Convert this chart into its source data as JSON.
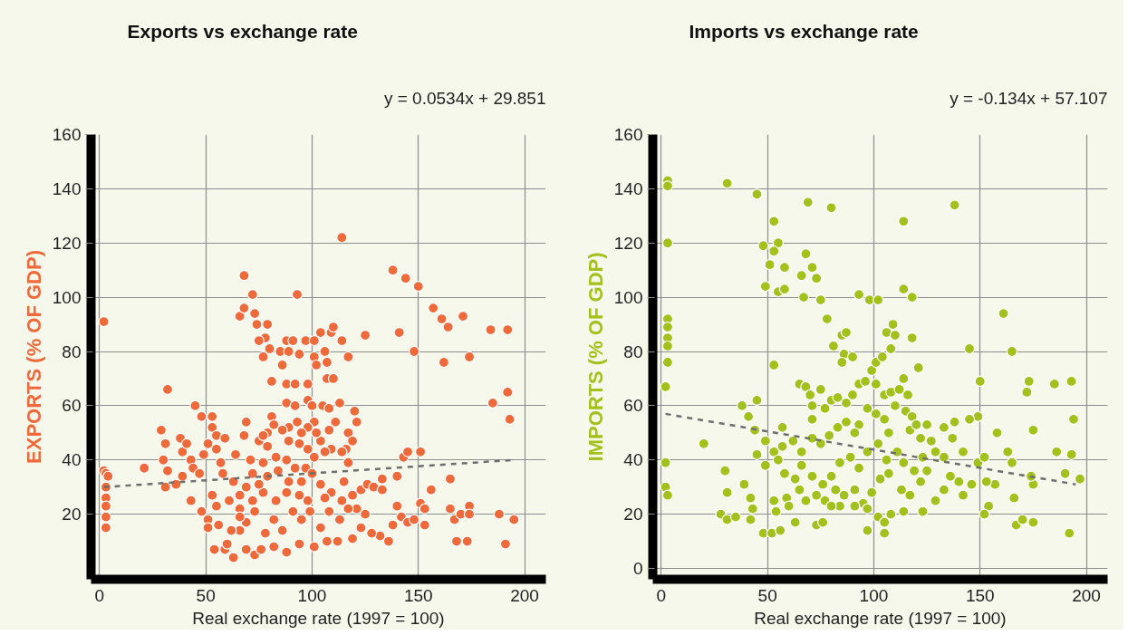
{
  "chart_data": [
    {
      "type": "scatter",
      "title": "Exports vs exchange rate",
      "xlabel": "Real exchange rate (1997 = 100)",
      "ylabel": "EXPORTS (% OF GDP)",
      "annotations": [
        "y = 0.0534x + 29.851"
      ],
      "xlim": [
        -4,
        210
      ],
      "ylim": [
        -4,
        160
      ],
      "xticks": [
        0,
        50,
        100,
        150,
        200
      ],
      "yticks": [
        20,
        40,
        60,
        80,
        100,
        120,
        140,
        160
      ],
      "grid": true,
      "series": [
        {
          "color": "#ee6a3a",
          "marker": "circle",
          "x": [
            114,
            68,
            72,
            93,
            138,
            144,
            150,
            157,
            161,
            164,
            171,
            184,
            192,
            141,
            148,
            162,
            174,
            192,
            185,
            193,
            125,
            2,
            66,
            68,
            73,
            74,
            79,
            78,
            75,
            80,
            77,
            85,
            88,
            91,
            89,
            94,
            86,
            97,
            101,
            104,
            109,
            110,
            101,
            106,
            107,
            102,
            107,
            110,
            114,
            117,
            81,
            88,
            92,
            98,
            32,
            21,
            29,
            31,
            30,
            38,
            39,
            41,
            45,
            48,
            53,
            53,
            55,
            59,
            51,
            55,
            49,
            43,
            32,
            44,
            47,
            39,
            36,
            31,
            43,
            57,
            58,
            48,
            51,
            51,
            56,
            54,
            59,
            63,
            60,
            64,
            68,
            69,
            63,
            61,
            55,
            53,
            66,
            69,
            73,
            76,
            82,
            88,
            94,
            101,
            107,
            112,
            119,
            71,
            75,
            81,
            88,
            92,
            98,
            100,
            105,
            108,
            113,
            120,
            121,
            117,
            119,
            116,
            117,
            114,
            109,
            106,
            104,
            102,
            108,
            111,
            101,
            98,
            95,
            93,
            89,
            86,
            82,
            79,
            77,
            89,
            94,
            98,
            101,
            97,
            92,
            88,
            83,
            79,
            77,
            72,
            79,
            84,
            89,
            95,
            100,
            104,
            109,
            115,
            119,
            123,
            126,
            129,
            133,
            133,
            140,
            143,
            145,
            151,
            156,
            165,
            140,
            142,
            145,
            148,
            151,
            153,
            153,
            165,
            167,
            170,
            174,
            174,
            168,
            173,
            188,
            195,
            191,
            136,
            138,
            132,
            128,
            123,
            125,
            121,
            117,
            113,
            108,
            104,
            99,
            95,
            91,
            86,
            82,
            78,
            73,
            69,
            66,
            66,
            62,
            72,
            77,
            83,
            88,
            94,
            98,
            106,
            114,
            75,
            69,
            66,
            2,
            3,
            4,
            3,
            3,
            3,
            3,
            3
          ],
          "values": [
            122,
            108,
            101,
            101,
            110,
            107,
            104,
            96,
            92,
            89,
            93,
            88,
            88,
            87,
            80,
            76,
            78,
            65,
            61,
            55,
            86,
            91,
            93,
            96,
            94,
            90,
            90,
            85,
            84,
            81,
            78,
            80,
            84,
            84,
            80,
            79,
            75,
            84,
            84,
            87,
            87,
            89,
            78,
            80,
            76,
            75,
            70,
            70,
            84,
            78,
            69,
            68,
            68,
            68,
            66,
            37,
            51,
            46,
            40,
            48,
            43,
            46,
            60,
            56,
            56,
            52,
            49,
            48,
            46,
            44,
            42,
            40,
            36,
            37,
            35,
            34,
            31,
            30,
            25,
            39,
            35,
            21,
            18,
            15,
            16,
            7,
            7,
            4,
            9,
            42,
            49,
            54,
            32,
            25,
            23,
            27,
            22,
            7,
            5,
            7,
            8,
            6,
            9,
            8,
            10,
            10,
            11,
            40,
            47,
            56,
            61,
            60,
            62,
            60,
            60,
            59,
            61,
            58,
            54,
            50,
            47,
            44,
            39,
            43,
            44,
            43,
            47,
            50,
            51,
            54,
            54,
            52,
            50,
            54,
            52,
            51,
            53,
            50,
            49,
            47,
            46,
            44,
            41,
            37,
            37,
            40,
            41,
            45,
            39,
            35,
            34,
            36,
            32,
            32,
            35,
            31,
            28,
            32,
            27,
            29,
            31,
            30,
            33,
            29,
            34,
            41,
            43,
            43,
            29,
            33,
            23,
            19,
            17,
            18,
            24,
            22,
            16,
            22,
            18,
            20,
            23,
            20,
            10,
            10,
            20,
            18,
            9,
            10,
            16,
            12,
            13,
            15,
            20,
            22,
            22,
            18,
            21,
            15,
            21,
            18,
            21,
            14,
            18,
            13,
            21,
            17,
            19,
            14,
            14,
            25,
            28,
            25,
            28,
            27,
            25,
            26,
            25,
            31,
            30,
            27,
            36,
            35,
            34,
            30,
            26,
            23,
            19,
            15
          ]
        },
        {
          "type": "line",
          "color": "#6e6e6e",
          "line_style": "dashed",
          "x": [
            2,
            195
          ],
          "values": [
            30,
            40
          ]
        }
      ]
    },
    {
      "type": "scatter",
      "title": "Imports vs exchange rate",
      "xlabel": "Real exchange rate (1997 = 100)",
      "ylabel": "IMPORTS (% OF GDP)",
      "annotations": [
        "y = -0.134x + 57.107"
      ],
      "xlim": [
        -4,
        210
      ],
      "ylim": [
        -4,
        160
      ],
      "xticks": [
        0,
        50,
        100,
        150,
        200
      ],
      "yticks": [
        0,
        20,
        40,
        60,
        80,
        100,
        120,
        140,
        160
      ],
      "grid": true,
      "series": [
        {
          "color": "#a2c11c",
          "marker": "circle",
          "x": [
            3,
            3,
            3,
            3,
            3,
            3,
            3,
            3,
            2,
            2,
            2,
            3,
            31,
            45,
            69,
            80,
            138,
            114,
            53,
            55,
            48,
            53,
            51,
            58,
            68,
            71,
            73,
            66,
            49,
            55,
            58,
            67,
            75,
            93,
            98,
            102,
            114,
            118,
            78,
            85,
            87,
            81,
            86,
            90,
            53,
            85,
            99,
            101,
            104,
            108,
            106,
            110,
            109,
            118,
            121,
            161,
            145,
            165,
            150,
            173,
            172,
            185,
            193,
            194,
            175,
            158,
            163,
            165,
            186,
            193,
            190,
            197,
            175,
            174,
            166,
            157,
            153,
            154,
            152,
            167,
            170,
            175,
            192,
            149,
            152,
            149,
            145,
            142,
            138,
            133,
            137,
            142,
            140,
            146,
            125,
            127,
            129,
            133,
            136,
            133,
            129,
            123,
            20,
            38,
            45,
            41,
            44,
            49,
            45,
            49,
            30,
            31,
            28,
            31,
            35,
            39,
            42,
            43,
            42,
            48,
            52,
            56,
            53,
            54,
            59,
            60,
            63,
            73,
            76,
            53,
            55,
            57,
            57,
            58,
            62,
            66,
            65,
            68,
            70,
            75,
            71,
            71,
            77,
            80,
            83,
            87,
            90,
            93,
            96,
            101,
            105,
            108,
            112,
            116,
            114,
            110,
            115,
            118,
            117,
            122,
            120,
            107,
            105,
            101,
            97,
            93,
            91,
            87,
            83,
            79,
            75,
            71,
            66,
            71,
            76,
            80,
            84,
            89,
            93,
            97,
            102,
            106,
            111,
            114,
            119,
            123,
            125,
            122,
            117,
            113,
            107,
            103,
            99,
            95,
            91,
            86,
            82,
            77,
            73,
            68,
            65,
            63,
            97,
            102,
            105,
            108,
            114,
            97,
            105,
            84,
            91,
            80
          ],
          "values": [
            143,
            141,
            120,
            92,
            89,
            85,
            82,
            76,
            67,
            39,
            30,
            27,
            142,
            138,
            135,
            133,
            134,
            128,
            128,
            120,
            119,
            117,
            112,
            111,
            116,
            111,
            107,
            108,
            104,
            102,
            103,
            100,
            99,
            101,
            99,
            99,
            103,
            100,
            92,
            86,
            87,
            82,
            79,
            78,
            75,
            76,
            73,
            76,
            78,
            81,
            87,
            86,
            90,
            85,
            74,
            94,
            81,
            80,
            69,
            69,
            65,
            68,
            69,
            55,
            51,
            50,
            43,
            39,
            43,
            42,
            35,
            33,
            31,
            34,
            26,
            31,
            32,
            23,
            20,
            16,
            18,
            17,
            13,
            39,
            41,
            56,
            55,
            43,
            54,
            52,
            48,
            27,
            32,
            31,
            53,
            47,
            43,
            41,
            34,
            29,
            25,
            21,
            46,
            60,
            62,
            56,
            51,
            47,
            42,
            38,
            36,
            28,
            20,
            18,
            19,
            31,
            26,
            22,
            18,
            13,
            13,
            14,
            25,
            21,
            26,
            23,
            17,
            16,
            17,
            43,
            40,
            52,
            45,
            35,
            47,
            43,
            68,
            67,
            64,
            66,
            60,
            55,
            59,
            62,
            63,
            61,
            64,
            68,
            69,
            68,
            64,
            65,
            66,
            64,
            70,
            60,
            58,
            56,
            51,
            48,
            53,
            50,
            55,
            57,
            59,
            53,
            50,
            54,
            52,
            49,
            46,
            48,
            38,
            34,
            31,
            34,
            39,
            41,
            37,
            43,
            46,
            40,
            43,
            39,
            36,
            41,
            36,
            32,
            27,
            29,
            35,
            33,
            28,
            24,
            29,
            27,
            29,
            25,
            27,
            25,
            29,
            33,
            22,
            19,
            17,
            20,
            21,
            14,
            13,
            23,
            23,
            23
          ]
        },
        {
          "type": "line",
          "color": "#6e6e6e",
          "line_style": "dashed",
          "x": [
            2,
            195
          ],
          "values": [
            57,
            31
          ]
        }
      ]
    }
  ]
}
